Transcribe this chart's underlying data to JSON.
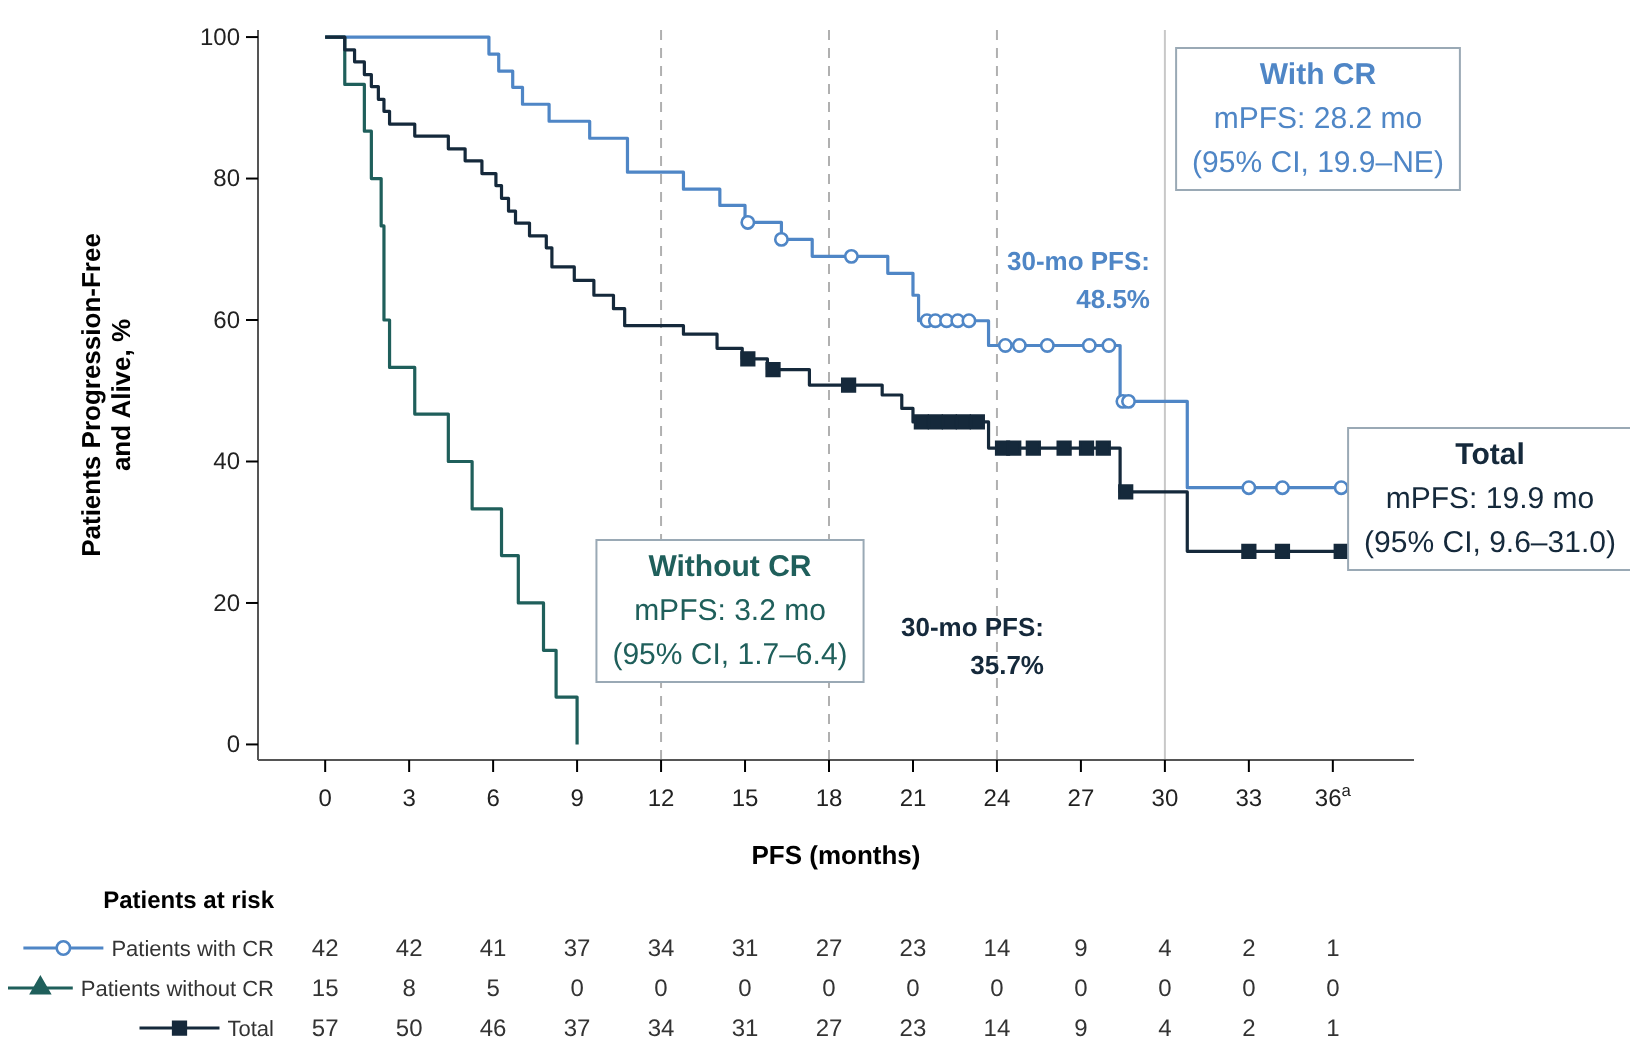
{
  "chart_data": {
    "type": "step",
    "ylabel": "Patients Progression-Free\nand Alive, %",
    "xlabel": "PFS (months)",
    "xlim": [
      -2.4,
      38.9
    ],
    "ylim": [
      -2.2,
      101
    ],
    "xticks": [
      0,
      3,
      6,
      9,
      12,
      15,
      18,
      21,
      24,
      27,
      30,
      33,
      {
        "value": 36,
        "label": "36$^{a}$"
      }
    ],
    "yticks": [
      0,
      20,
      40,
      60,
      80,
      100
    ],
    "grid": false,
    "legend": "bottom",
    "line_style": "solid",
    "ref_lines": [
      {
        "axis": "x",
        "value": 12,
        "color": "#b0b0b0",
        "line_style": "dashed"
      },
      {
        "axis": "x",
        "value": 18,
        "color": "#b0b0b0",
        "line_style": "dashed"
      },
      {
        "axis": "x",
        "value": 24,
        "color": "#b0b0b0",
        "line_style": "dashed"
      },
      {
        "axis": "x",
        "value": 30,
        "color": "#c8c8c8",
        "line_style": "solid"
      }
    ],
    "series": [
      {
        "name": "Patients with CR",
        "color": "#4f86c6",
        "x": [
          0,
          5.85,
          6.2,
          6.7,
          7.05,
          8.0,
          9.45,
          10.8,
          12.8,
          14.1,
          15.0,
          16.3,
          17.4,
          20.1,
          21.0,
          21.2,
          23.7,
          28.4,
          30.8,
          36.3
        ],
        "values": [
          100,
          97.6,
          95.2,
          92.9,
          90.5,
          88.1,
          85.7,
          80.9,
          78.5,
          76.2,
          73.8,
          71.4,
          69,
          66.6,
          63.5,
          59.9,
          56.4,
          48.5,
          36.3,
          36.3
        ]
      },
      {
        "name": "Patients without CR",
        "color": "#1f5f5b",
        "x": [
          0,
          0.7,
          1.4,
          1.65,
          2.0,
          2.1,
          2.3,
          3.2,
          4.4,
          5.25,
          6.3,
          6.9,
          7.8,
          8.25,
          9.0
        ],
        "values": [
          100,
          93.3,
          86.7,
          80,
          73.3,
          60,
          53.3,
          46.7,
          40,
          33.3,
          26.7,
          20,
          13.3,
          6.7,
          0
        ]
      },
      {
        "name": "Total",
        "color": "#15293b",
        "x": [
          0,
          0.7,
          1.05,
          1.4,
          1.65,
          1.9,
          2.1,
          2.3,
          3.2,
          4.4,
          5.0,
          5.6,
          6.1,
          6.3,
          6.55,
          6.8,
          7.3,
          7.9,
          8.1,
          8.9,
          9.6,
          10.3,
          10.7,
          12.8,
          14.0,
          14.9,
          15.8,
          17.3,
          19.9,
          20.6,
          21.0,
          23.7,
          28.4,
          30.8,
          36.3
        ],
        "values": [
          100,
          98.2,
          96.5,
          94.7,
          93,
          91.2,
          89.5,
          87.7,
          86,
          84.2,
          82.5,
          80.7,
          79,
          77.2,
          75.4,
          73.7,
          71.9,
          70.2,
          67.5,
          65.6,
          63.5,
          61.6,
          59.2,
          58,
          56,
          54.5,
          53,
          50.8,
          49.4,
          47.5,
          45.6,
          41.9,
          35.7,
          27.3,
          27.3
        ]
      },
      {
        "type": "scatter",
        "color": "#4f86c6",
        "marker": "circle",
        "x": [
          15.1,
          16.3,
          18.8,
          21.5,
          21.8,
          22.2,
          22.6,
          23.0,
          24.3,
          24.8,
          25.8,
          27.3,
          28.0,
          28.5,
          28.7,
          33.0,
          34.2,
          36.3
        ],
        "values": [
          73.8,
          71.4,
          69,
          59.9,
          59.9,
          59.9,
          59.9,
          59.9,
          56.4,
          56.4,
          56.4,
          56.4,
          56.4,
          48.5,
          48.5,
          36.3,
          36.3,
          36.3
        ]
      },
      {
        "type": "scatter",
        "color": "#1f5f5b",
        "marker": "triangle"
      },
      {
        "type": "scatter",
        "color": "#15293b",
        "marker": "square",
        "x": [
          15.1,
          16.0,
          18.7,
          21.3,
          21.8,
          22.3,
          22.8,
          23.3,
          24.2,
          24.6,
          25.3,
          26.4,
          27.2,
          27.8,
          28.6,
          33.0,
          34.2,
          36.3
        ],
        "values": [
          54.5,
          53,
          50.8,
          45.6,
          45.6,
          45.6,
          45.6,
          45.6,
          41.9,
          41.9,
          41.9,
          41.9,
          41.9,
          41.9,
          35.7,
          27.3,
          27.3,
          27.3
        ]
      }
    ],
    "annotations": [
      "With CR\nmPFS: 28.2 mo\n(95% CI, 19.9–NE)",
      "Total\nmPFS: 19.9 mo\n(95% CI, 9.6–31.0)",
      "Without CR\nmPFS: 3.2 mo\n(95% CI, 1.7–6.4)",
      "30-mo PFS:\n48.5%",
      "30-mo PFS:\n35.7%",
      "Patients at risk",
      "42 42 41 37 34 31 27 23 14 9 4 2 1",
      "15 8 5 0 0 0 0 0 0 0 0 0 0",
      "57 50 46 37 34 31 27 23 14 9 4 2 1"
    ]
  }
}
